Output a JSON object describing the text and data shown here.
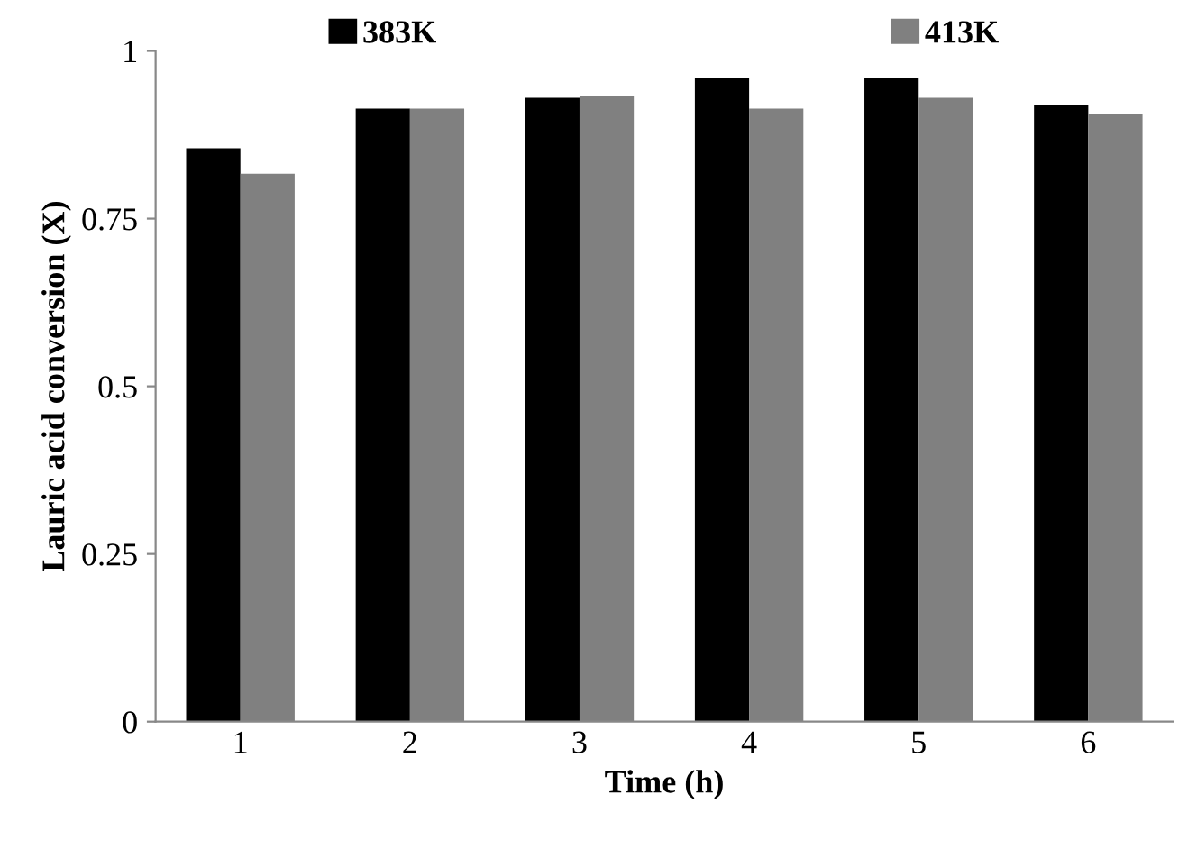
{
  "chart_data": {
    "type": "bar",
    "xlabel": "Time (h)",
    "ylabel": "Lauric acid conversion (X)",
    "categories": [
      "1",
      "2",
      "3",
      "4",
      "5",
      "6"
    ],
    "series": [
      {
        "name": "383K",
        "color": "#000000",
        "values": [
          0.855,
          0.914,
          0.93,
          0.96,
          0.96,
          0.919
        ]
      },
      {
        "name": "413K",
        "color": "#808080",
        "values": [
          0.817,
          0.914,
          0.933,
          0.914,
          0.93,
          0.906
        ]
      }
    ],
    "ylim": [
      0,
      1
    ],
    "yticks": [
      0,
      0.25,
      0.5,
      0.75,
      1
    ],
    "grid": false,
    "legend": "top"
  }
}
